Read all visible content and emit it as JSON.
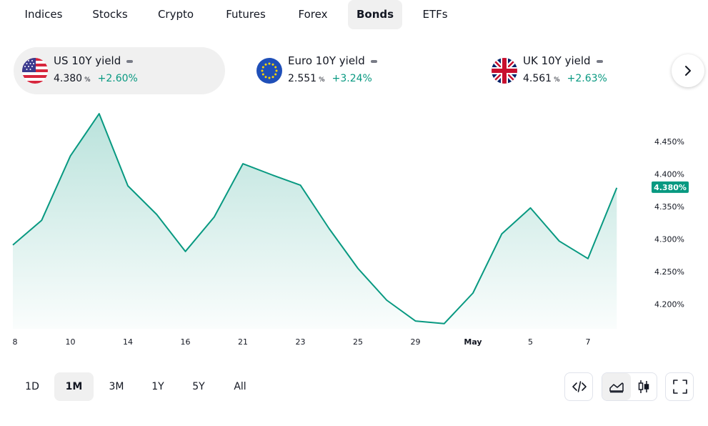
{
  "tabs": [
    {
      "label": "Indices"
    },
    {
      "label": "Stocks"
    },
    {
      "label": "Crypto"
    },
    {
      "label": "Futures"
    },
    {
      "label": "Forex"
    },
    {
      "label": "Bonds",
      "active": true
    },
    {
      "label": "ETFs"
    }
  ],
  "cards": [
    {
      "name": "US 10Y yield",
      "value": "4.380",
      "unit": "%",
      "change": "+2.60%",
      "flag": "us-flag-icon",
      "active": true
    },
    {
      "name": "Euro 10Y yield",
      "value": "2.551",
      "unit": "%",
      "change": "+3.24%",
      "flag": "eu-flag-icon"
    },
    {
      "name": "UK 10Y yield",
      "value": "4.561",
      "unit": "%",
      "change": "+2.63%",
      "flag": "uk-flag-icon"
    }
  ],
  "colors": {
    "line": "#089981",
    "positive": "#089981",
    "text": "#131722",
    "muted": "#787b86",
    "active_bg": "#f0f0f0"
  },
  "chart_data": {
    "type": "area",
    "series": [
      {
        "values": [
          4.291,
          4.329,
          4.428,
          4.493,
          4.382,
          4.338,
          4.281,
          4.334,
          4.416,
          4.399,
          4.383,
          4.316,
          4.255,
          4.206,
          4.174,
          4.17,
          4.217,
          4.308,
          4.348,
          4.297,
          4.27,
          4.379
        ]
      }
    ],
    "x_ticks": [
      {
        "label": "8",
        "index": 0
      },
      {
        "label": "10",
        "index": 2
      },
      {
        "label": "14",
        "index": 4
      },
      {
        "label": "16",
        "index": 6
      },
      {
        "label": "21",
        "index": 8
      },
      {
        "label": "23",
        "index": 10
      },
      {
        "label": "25",
        "index": 12
      },
      {
        "label": "29",
        "index": 14
      },
      {
        "label": "May",
        "index": 16
      },
      {
        "label": "5",
        "index": 18
      },
      {
        "label": "7",
        "index": 20
      }
    ],
    "y_ticks": [
      "4.450%",
      "4.400%",
      "4.350%",
      "4.300%",
      "4.250%",
      "4.200%"
    ],
    "y_tick_values": [
      4.45,
      4.4,
      4.35,
      4.3,
      4.25,
      4.2
    ],
    "current": {
      "label": "4.380%",
      "value": 4.38
    },
    "ylim": [
      4.162,
      4.514
    ]
  },
  "ranges": [
    {
      "label": "1D"
    },
    {
      "label": "1M",
      "active": true
    },
    {
      "label": "3M"
    },
    {
      "label": "1Y"
    },
    {
      "label": "5Y"
    },
    {
      "label": "All"
    }
  ],
  "tools": {
    "embed_icon": "code-icon",
    "area_icon": "area-chart-icon",
    "candle_icon": "candlestick-icon",
    "fullscreen_icon": "fullscreen-icon"
  }
}
